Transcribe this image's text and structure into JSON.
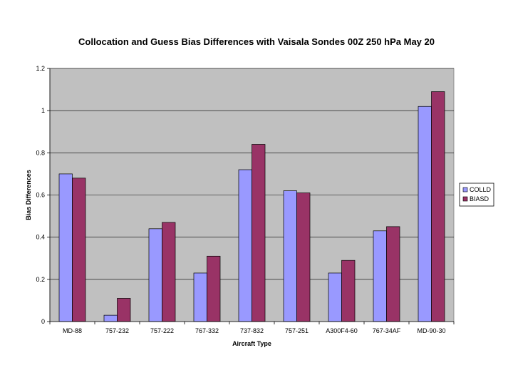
{
  "chart_data": {
    "type": "bar",
    "title": "Collocation and Guess Bias Differences with Vaisala Sondes 00Z 250 hPa May 20",
    "xlabel": "Aircraft Type",
    "ylabel": "Bias Differences",
    "ylim": [
      0,
      1.2
    ],
    "yticks": [
      "0",
      "0.2",
      "0.4",
      "0.6",
      "0.8",
      "1",
      "1.2"
    ],
    "ytick_values": [
      0,
      0.2,
      0.4,
      0.6,
      0.8,
      1.0,
      1.2
    ],
    "grid": true,
    "legend_position": "right",
    "categories": [
      "MD-88",
      "757-232",
      "757-222",
      "767-332",
      "737-832",
      "757-251",
      "A300F4-60",
      "767-34AF",
      "MD-90-30"
    ],
    "series": [
      {
        "name": "COLLD",
        "color": "#9999ff",
        "values": [
          0.7,
          0.03,
          0.44,
          0.23,
          0.72,
          0.62,
          0.23,
          0.43,
          1.02
        ]
      },
      {
        "name": "BIASD",
        "color": "#993366",
        "values": [
          0.68,
          0.11,
          0.47,
          0.31,
          0.84,
          0.61,
          0.29,
          0.45,
          1.09
        ]
      }
    ],
    "plot_background": "#c0c0c0"
  }
}
